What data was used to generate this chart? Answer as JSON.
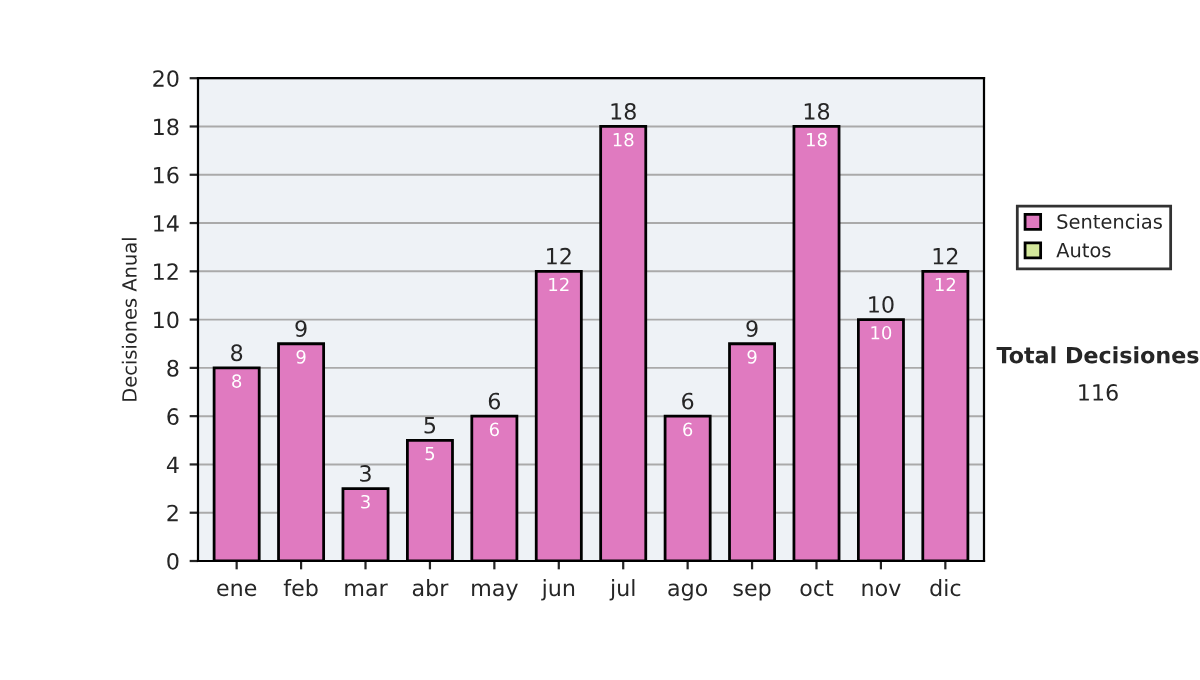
{
  "chart_data": {
    "type": "bar",
    "ylabel": "Decisiones Anual",
    "categories": [
      "ene",
      "feb",
      "mar",
      "abr",
      "may",
      "jun",
      "jul",
      "ago",
      "sep",
      "oct",
      "nov",
      "dic"
    ],
    "stacked": true,
    "series": [
      {
        "name": "Sentencias",
        "color": "#e07ac0",
        "values": [
          8,
          9,
          3,
          5,
          6,
          12,
          18,
          6,
          9,
          18,
          10,
          12
        ],
        "value_labels": [
          "8",
          "9",
          "3",
          "5",
          "6",
          "12",
          "18",
          "6",
          "9",
          "18",
          "10",
          "12"
        ]
      },
      {
        "name": "Autos",
        "color": "#d4e89c",
        "values": [
          0,
          0,
          0,
          0,
          0,
          0,
          0,
          0,
          0,
          0,
          0,
          0
        ]
      }
    ],
    "totals": [
      "8",
      "9",
      "3",
      "5",
      "6",
      "12",
      "18",
      "6",
      "9",
      "18",
      "10",
      "12"
    ],
    "ylim": [
      0,
      20
    ],
    "yticks": [
      0,
      2,
      4,
      6,
      8,
      10,
      12,
      14,
      16,
      18,
      20
    ],
    "grid": "y",
    "legend": "right",
    "annotations": [
      "Total Decisiones",
      "116"
    ]
  }
}
